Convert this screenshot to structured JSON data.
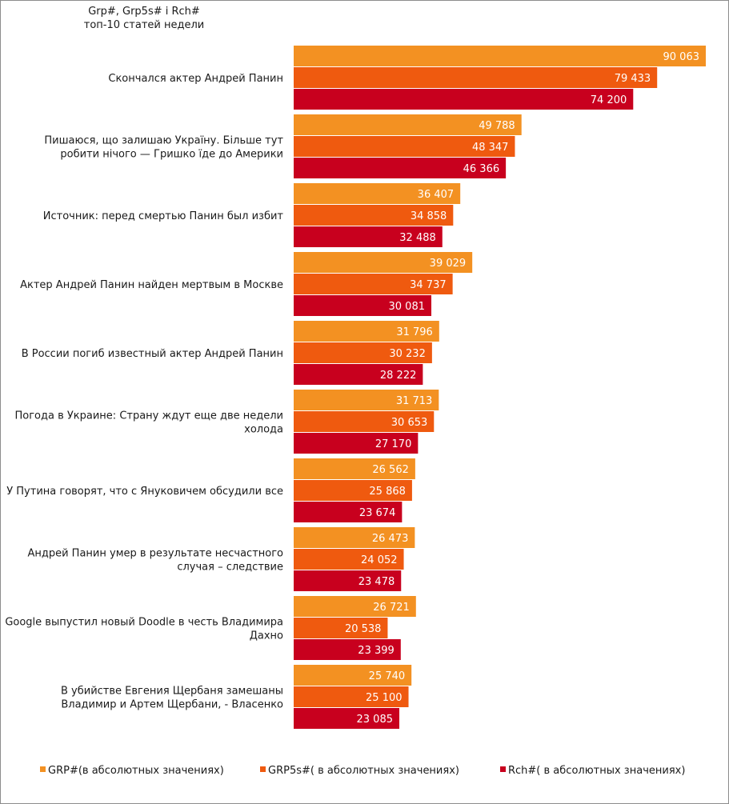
{
  "chart_data": {
    "type": "bar",
    "orientation": "horizontal",
    "title": "Grp#, Grp5s# і Rch#",
    "subtitle": "топ-10 статей недели",
    "categories": [
      "Скончался актер Андрей Панин",
      "Пишаюся, що залишаю Україну. Більше тут робити нічого — Гришко їде до Америки",
      "Источник: перед смертью Панин был избит",
      "Актер Андрей Панин найден мертвым в Москве",
      "В России погиб известный актер Андрей Панин",
      "Погода в Украине: Страну ждут еще две недели холода",
      "У Путина говорят, что с Януковичем обсудили все",
      "Андрей Панин умер в результате несчастного случая – следствие",
      "Google выпустил новый Doodle в честь Владимира Дахно",
      "В убийстве Евгения Щербаня замешаны Владимир и Артем Щербани, - Власенко"
    ],
    "category_lines": [
      [
        "Скончался актер Андрей Панин"
      ],
      [
        "Пишаюся, що залишаю Україну. Більше тут",
        "робити нічого — Гришко їде до Америки"
      ],
      [
        "Источник: перед смертью Панин был избит"
      ],
      [
        "Актер Андрей Панин найден мертвым в Москве"
      ],
      [
        "В России погиб известный актер Андрей Панин"
      ],
      [
        "Погода в Украине: Страну ждут еще две недели",
        "холода"
      ],
      [
        "У Путина говорят, что с Януковичем обсудили все"
      ],
      [
        "Андрей Панин умер в результате несчастного",
        "случая – следствие"
      ],
      [
        "Google выпустил новый Doodle в честь Владимира",
        "Дахно"
      ],
      [
        "В убийстве Евгения Щербаня замешаны",
        "Владимир и Артем Щербани, - Власенко"
      ]
    ],
    "series": [
      {
        "name": "GRP#(в абсолютных значениях)",
        "color": "#f39122",
        "values": [
          90063,
          49788,
          36407,
          39029,
          31796,
          31713,
          26562,
          26473,
          26721,
          25740
        ],
        "labels": [
          "90 063",
          "49 788",
          "36 407",
          "39 029",
          "31 796",
          "31 713",
          "26 562",
          "26 473",
          "26 721",
          "25 740"
        ]
      },
      {
        "name": "GRP5s#( в абсолютных значениях)",
        "color": "#ef5a0f",
        "values": [
          79433,
          48347,
          34858,
          34737,
          30232,
          30653,
          25868,
          24052,
          20538,
          25100
        ],
        "labels": [
          "79 433",
          "48 347",
          "34 858",
          "34 737",
          "30 232",
          "30 653",
          "25 868",
          "24 052",
          "20 538",
          "25 100"
        ]
      },
      {
        "name": "Rch#( в абсолютных значениях)",
        "color": "#c8001e",
        "values": [
          74200,
          46366,
          32488,
          30081,
          28222,
          27170,
          23674,
          23478,
          23399,
          23085
        ],
        "labels": [
          "74 200",
          "46 366",
          "32 488",
          "30 081",
          "28 222",
          "27 170",
          "23 674",
          "23 478",
          "23 399",
          "23 085"
        ]
      }
    ],
    "xlim": [
      0,
      90063
    ],
    "grid": false,
    "legend_position": "bottom"
  }
}
